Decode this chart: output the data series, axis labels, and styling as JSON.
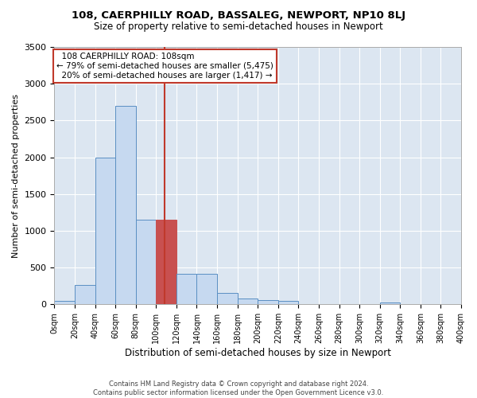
{
  "title": "108, CAERPHILLY ROAD, BASSALEG, NEWPORT, NP10 8LJ",
  "subtitle": "Size of property relative to semi-detached houses in Newport",
  "xlabel": "Distribution of semi-detached houses by size in Newport",
  "ylabel": "Number of semi-detached properties",
  "property_size": 108,
  "property_label": "108 CAERPHILLY ROAD: 108sqm",
  "pct_smaller": 79,
  "count_smaller": 5475,
  "pct_larger": 20,
  "count_larger": 1417,
  "bin_edges": [
    0,
    20,
    40,
    60,
    80,
    100,
    120,
    140,
    160,
    180,
    200,
    220,
    240,
    260,
    280,
    300,
    320,
    340,
    360,
    380,
    400
  ],
  "bar_heights": [
    50,
    260,
    2000,
    2700,
    1150,
    1150,
    410,
    410,
    160,
    80,
    60,
    50,
    0,
    0,
    0,
    0,
    30,
    0,
    0,
    0
  ],
  "bar_color": "#c6d9f0",
  "bar_edge_color": "#5a8fc3",
  "highlight_bar_color": "#c85050",
  "highlight_bar_edge_color": "#c85050",
  "vline_color": "#c0392b",
  "vline_x": 108,
  "annotation_box_color": "#c0392b",
  "background_color": "#dce6f1",
  "ylim": [
    0,
    3500
  ],
  "yticks": [
    0,
    500,
    1000,
    1500,
    2000,
    2500,
    3000,
    3500
  ],
  "footer_line1": "Contains HM Land Registry data © Crown copyright and database right 2024.",
  "footer_line2": "Contains public sector information licensed under the Open Government Licence v3.0."
}
